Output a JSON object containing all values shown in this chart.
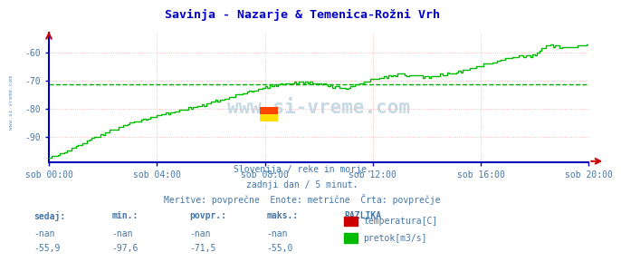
{
  "title": "Savinja - Nazarje & Temenica-Rožni Vrh",
  "title_color": "#0000cc",
  "bg_color": "#ffffff",
  "plot_bg_color": "#ffffff",
  "grid_color_h": "#ffaaaa",
  "grid_color_v": "#ffaaaa",
  "line_color": "#00bb00",
  "avg_line_color": "#00aa00",
  "avg_line_value": -71.5,
  "ylim_min": -97.6,
  "ylim_max": -53.0,
  "yticks": [
    -90,
    -80,
    -70,
    -60
  ],
  "xlabel_color": "#4477aa",
  "xtick_labels": [
    "sob 00:00",
    "sob 04:00",
    "sob 08:00",
    "sob 12:00",
    "sob 16:00",
    "sob 20:00"
  ],
  "xtick_positions": [
    0,
    4,
    8,
    12,
    16,
    20
  ],
  "x_total_hours": 20,
  "watermark": "www.si-vreme.com",
  "subtitle1": "Slovenija / reke in morje.",
  "subtitle2": "zadnji dan / 5 minut.",
  "subtitle3": "Meritve: povprečne  Enote: metrične  Črta: povprečje",
  "label_sedaj": "sedaj:",
  "label_min": "min.:",
  "label_povpr": "povpr.:",
  "label_maks": "maks.:",
  "label_razlika": "RAZLIKA",
  "row1": [
    "-nan",
    "-nan",
    "-nan",
    "-nan"
  ],
  "row2": [
    "-55,9",
    "-97,6",
    "-71,5",
    "-55,0"
  ],
  "legend_items": [
    {
      "color": "#cc0000",
      "label": "temperatura[C]"
    },
    {
      "color": "#00bb00",
      "label": "pretok[m3/s]"
    }
  ],
  "sidebar_text": "www.si-vreme.com",
  "sidebar_color": "#4477aa",
  "axis_color": "#0000bb",
  "arrow_color": "#cc0000"
}
